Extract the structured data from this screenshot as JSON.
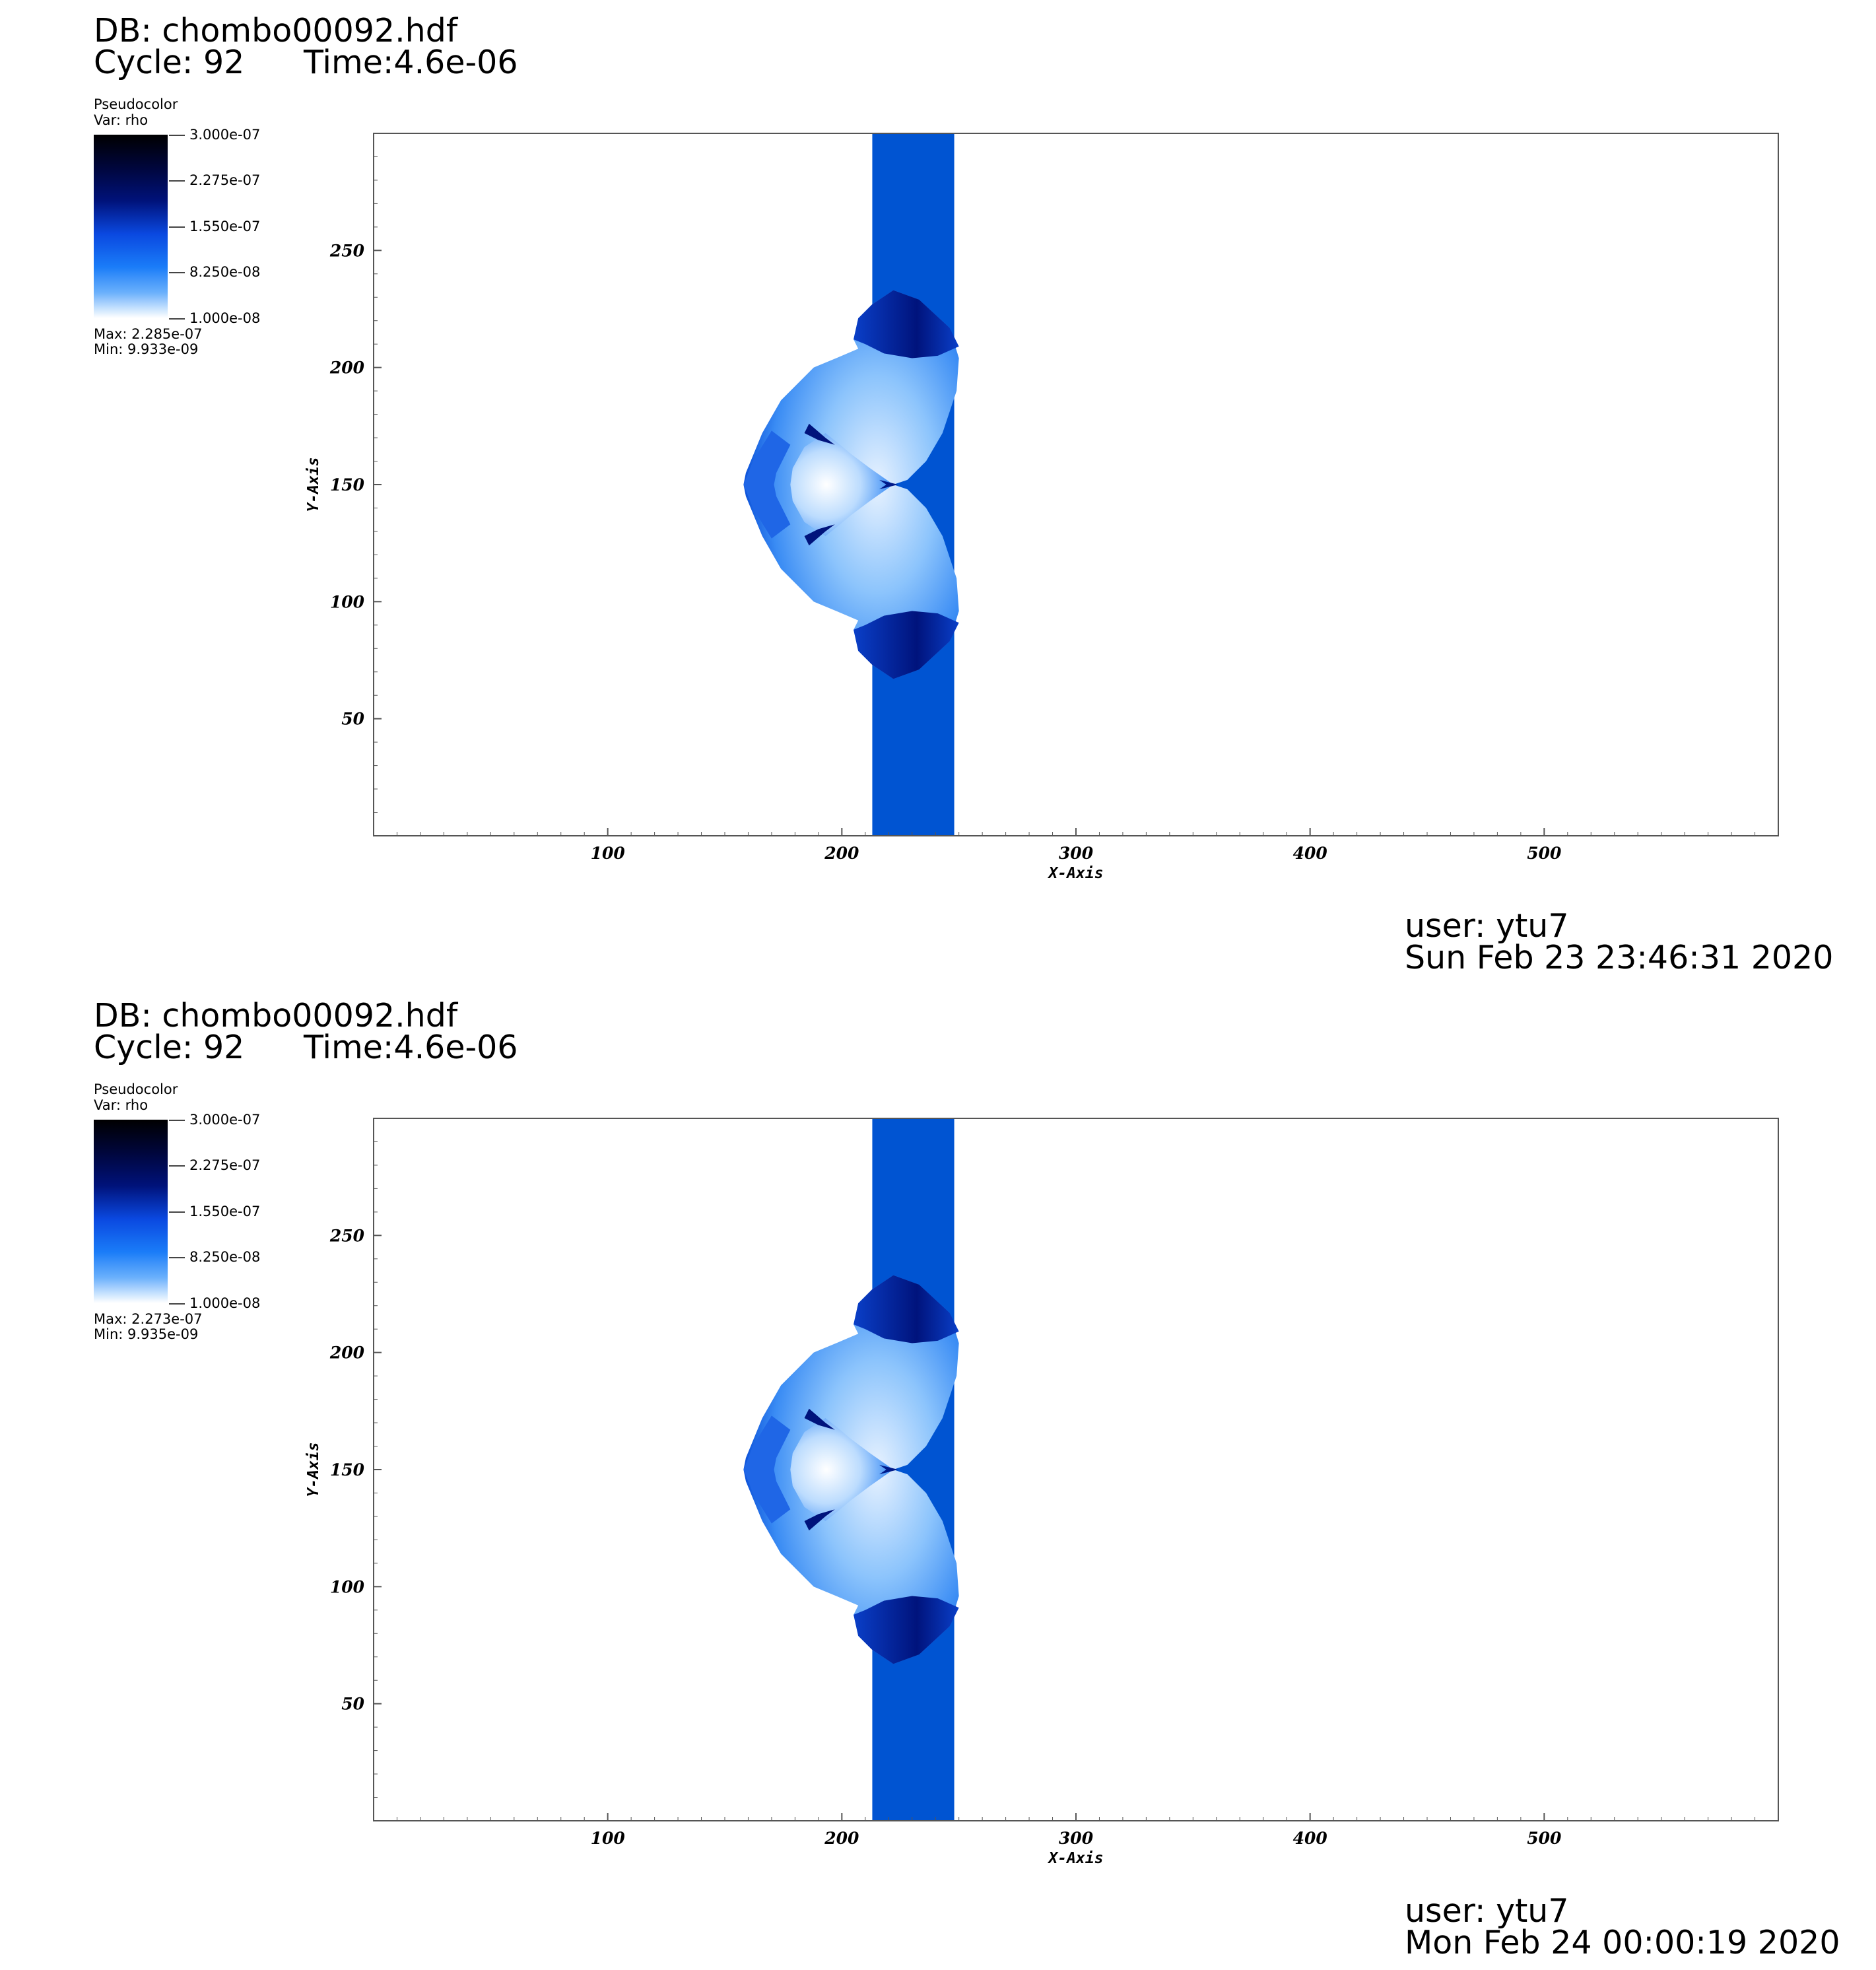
{
  "panels": [
    {
      "db": "DB: chombo00092.hdf",
      "cycle": "Cycle: 92",
      "time": "Time:4.6e-06",
      "legend": {
        "title": "Pseudocolor",
        "var": "Var: rho",
        "ticks": [
          "3.000e-07",
          "2.275e-07",
          "1.550e-07",
          "8.250e-08",
          "1.000e-08"
        ],
        "max": "Max:  2.285e-07",
        "min": "Min:  9.933e-09"
      },
      "user": "user: ytu7",
      "date": "Sun Feb 23 23:46:31 2020"
    },
    {
      "db": "DB: chombo00092.hdf",
      "cycle": "Cycle: 92",
      "time": "Time:4.6e-06",
      "legend": {
        "title": "Pseudocolor",
        "var": "Var: rho",
        "ticks": [
          "3.000e-07",
          "2.275e-07",
          "1.550e-07",
          "8.250e-08",
          "1.000e-08"
        ],
        "max": "Max:  2.273e-07",
        "min": "Min:  9.935e-09"
      },
      "user": "user: ytu7",
      "date": "Mon Feb 24 00:00:19 2020"
    }
  ],
  "chart_data": [
    {
      "type": "heatmap",
      "variable": "rho",
      "xlabel": "X-Axis",
      "ylabel": "Y-Axis",
      "xlim": [
        0,
        600
      ],
      "ylim": [
        0,
        300
      ],
      "xticks": [
        100,
        200,
        300,
        400,
        500
      ],
      "yticks": [
        50,
        100,
        150,
        200,
        250
      ],
      "color_range": [
        1e-08,
        3e-07
      ],
      "colormap": [
        "#ffffff",
        "#1a7cf8",
        "#0a48e0",
        "#00127a",
        "#000000"
      ],
      "slab_x_range": [
        213,
        248
      ],
      "slab_color": "#0054d2"
    },
    {
      "type": "heatmap",
      "variable": "rho",
      "xlabel": "X-Axis",
      "ylabel": "Y-Axis",
      "xlim": [
        0,
        600
      ],
      "ylim": [
        0,
        300
      ],
      "xticks": [
        100,
        200,
        300,
        400,
        500
      ],
      "yticks": [
        50,
        100,
        150,
        200,
        250
      ],
      "color_range": [
        1e-08,
        3e-07
      ],
      "colormap": [
        "#ffffff",
        "#1a7cf8",
        "#0a48e0",
        "#00127a",
        "#000000"
      ],
      "slab_x_range": [
        213,
        248
      ],
      "slab_color": "#0054d2"
    }
  ]
}
